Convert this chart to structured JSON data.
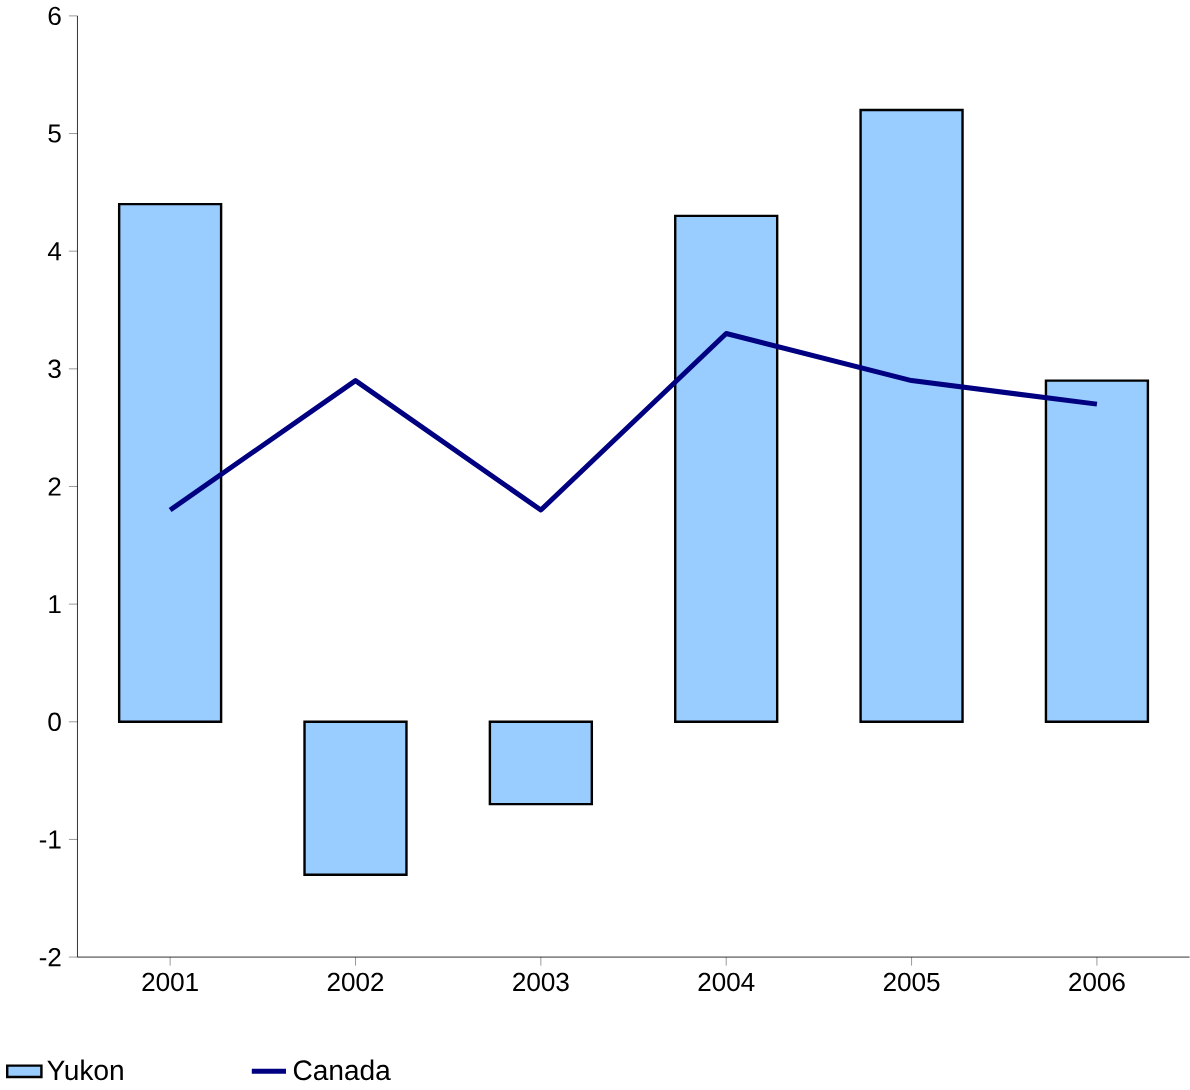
{
  "chart_data": {
    "type": "bar",
    "categories": [
      "2001",
      "2002",
      "2003",
      "2004",
      "2005",
      "2006"
    ],
    "series": [
      {
        "name": "Yukon",
        "type": "bar",
        "color": "#99ccff",
        "values": [
          4.4,
          -1.3,
          -0.7,
          4.3,
          5.2,
          2.9
        ]
      },
      {
        "name": "Canada",
        "type": "line",
        "color": "#000080",
        "values": [
          1.8,
          2.9,
          1.8,
          3.3,
          2.9,
          2.7
        ]
      }
    ],
    "ylim": [
      -2,
      6
    ],
    "yticks": [
      -2,
      -1,
      0,
      1,
      2,
      3,
      4,
      5,
      6
    ],
    "legend": "bottom left",
    "marker": "none",
    "grid": false
  }
}
